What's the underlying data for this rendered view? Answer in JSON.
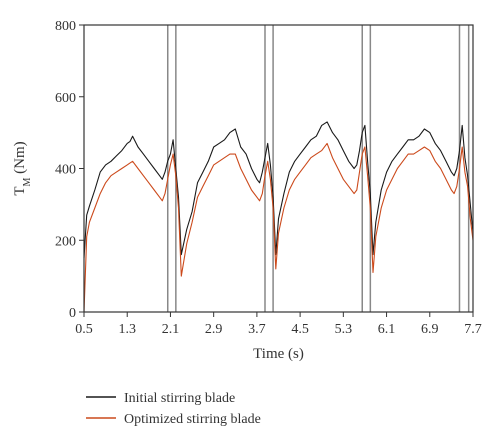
{
  "chart_data": {
    "type": "line",
    "xlabel": "Time (s)",
    "ylabel_main": "T",
    "ylabel_sub": "M",
    "ylabel_unit": " (Nm)",
    "xlim": [
      0.5,
      7.7
    ],
    "ylim": [
      0,
      800
    ],
    "xticks": [
      0.5,
      1.3,
      2.1,
      2.9,
      3.7,
      4.5,
      5.3,
      6.1,
      6.9,
      7.7
    ],
    "xtick_labels": [
      "0.5",
      "1.3",
      "2.1",
      "2.9",
      "3.7",
      "4.5",
      "5.3",
      "6.1",
      "6.9",
      "7.7"
    ],
    "yticks": [
      0,
      200,
      400,
      600,
      800
    ],
    "ytick_labels": [
      "0",
      "200",
      "400",
      "600",
      "800"
    ],
    "vertical_lines": [
      2.05,
      2.2,
      3.85,
      4.0,
      5.65,
      5.8,
      7.45,
      7.62
    ],
    "legend_position": "bottom-left, below plot",
    "grid": false,
    "series": [
      {
        "name": "Initial stirring blade",
        "color": "#1a1a1a",
        "x": [
          0.5,
          0.55,
          0.6,
          0.7,
          0.8,
          0.9,
          1.0,
          1.1,
          1.2,
          1.3,
          1.35,
          1.4,
          1.5,
          1.6,
          1.7,
          1.8,
          1.9,
          1.95,
          2.0,
          2.05,
          2.1,
          2.15,
          2.2,
          2.25,
          2.3,
          2.4,
          2.5,
          2.6,
          2.7,
          2.8,
          2.9,
          3.0,
          3.1,
          3.2,
          3.3,
          3.4,
          3.5,
          3.6,
          3.7,
          3.75,
          3.8,
          3.85,
          3.9,
          3.95,
          4.0,
          4.05,
          4.1,
          4.2,
          4.3,
          4.4,
          4.5,
          4.6,
          4.7,
          4.8,
          4.9,
          5.0,
          5.1,
          5.2,
          5.3,
          5.4,
          5.5,
          5.55,
          5.6,
          5.65,
          5.7,
          5.75,
          5.8,
          5.85,
          5.9,
          6.0,
          6.1,
          6.2,
          6.3,
          6.4,
          6.5,
          6.6,
          6.7,
          6.8,
          6.9,
          7.0,
          7.1,
          7.2,
          7.3,
          7.35,
          7.4,
          7.45,
          7.5,
          7.55,
          7.6,
          7.65,
          7.7
        ],
        "values": [
          150,
          270,
          295,
          340,
          390,
          410,
          420,
          435,
          450,
          470,
          475,
          490,
          460,
          440,
          420,
          400,
          380,
          370,
          390,
          420,
          440,
          480,
          400,
          320,
          160,
          230,
          280,
          360,
          390,
          420,
          460,
          470,
          480,
          500,
          510,
          460,
          440,
          400,
          370,
          360,
          390,
          430,
          470,
          410,
          320,
          160,
          260,
          330,
          390,
          420,
          440,
          460,
          480,
          490,
          520,
          530,
          500,
          480,
          450,
          420,
          400,
          410,
          450,
          500,
          520,
          420,
          330,
          160,
          250,
          340,
          390,
          420,
          440,
          460,
          480,
          480,
          490,
          510,
          500,
          470,
          450,
          420,
          390,
          380,
          400,
          450,
          520,
          430,
          380,
          300,
          220
        ]
      },
      {
        "name": "Optimized stirring blade",
        "color": "#cc4a1c",
        "x": [
          0.5,
          0.55,
          0.6,
          0.7,
          0.8,
          0.9,
          1.0,
          1.1,
          1.2,
          1.3,
          1.35,
          1.4,
          1.5,
          1.6,
          1.7,
          1.8,
          1.9,
          1.95,
          2.0,
          2.05,
          2.1,
          2.15,
          2.2,
          2.25,
          2.3,
          2.4,
          2.5,
          2.6,
          2.7,
          2.8,
          2.9,
          3.0,
          3.1,
          3.2,
          3.3,
          3.4,
          3.5,
          3.6,
          3.7,
          3.75,
          3.8,
          3.85,
          3.9,
          3.95,
          4.0,
          4.05,
          4.1,
          4.2,
          4.3,
          4.4,
          4.5,
          4.6,
          4.7,
          4.8,
          4.9,
          5.0,
          5.1,
          5.2,
          5.3,
          5.4,
          5.5,
          5.55,
          5.6,
          5.65,
          5.7,
          5.75,
          5.8,
          5.85,
          5.9,
          6.0,
          6.1,
          6.2,
          6.3,
          6.4,
          6.5,
          6.6,
          6.7,
          6.8,
          6.9,
          7.0,
          7.1,
          7.2,
          7.3,
          7.35,
          7.4,
          7.45,
          7.5,
          7.55,
          7.6,
          7.65,
          7.7
        ],
        "values": [
          0,
          210,
          250,
          290,
          330,
          360,
          380,
          390,
          400,
          410,
          415,
          420,
          400,
          380,
          360,
          340,
          320,
          310,
          330,
          370,
          410,
          440,
          380,
          290,
          100,
          190,
          250,
          320,
          350,
          380,
          410,
          420,
          430,
          440,
          440,
          400,
          370,
          340,
          320,
          310,
          330,
          380,
          420,
          370,
          290,
          120,
          220,
          290,
          340,
          370,
          390,
          410,
          430,
          440,
          450,
          470,
          430,
          400,
          370,
          350,
          330,
          340,
          390,
          440,
          460,
          380,
          290,
          110,
          210,
          290,
          340,
          370,
          400,
          420,
          440,
          440,
          450,
          460,
          450,
          420,
          400,
          370,
          340,
          330,
          350,
          400,
          460,
          390,
          350,
          260,
          200
        ]
      }
    ]
  }
}
